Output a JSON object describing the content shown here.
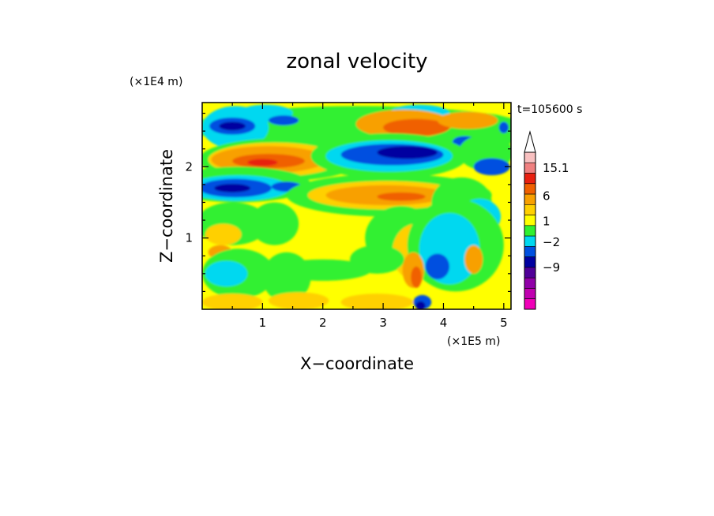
{
  "chart_data": {
    "type": "heatmap",
    "title": "zonal velocity",
    "xlabel": "X−coordinate",
    "ylabel": "Z−coordinate",
    "x_unit": "(×1E5 m)",
    "y_unit": "(×1E4 m)",
    "time_label": "t=105600 s",
    "x_ticks": [
      "1",
      "2",
      "3",
      "4",
      "5"
    ],
    "y_ticks": [
      "1",
      "2"
    ],
    "xlim": [
      0,
      5.12
    ],
    "ylim": [
      0,
      2.9
    ],
    "colorbar": {
      "labels": [
        "15.1",
        "6",
        "1",
        "−2",
        "−9"
      ],
      "colors": [
        "#f8c0c0",
        "#f08080",
        "#e82010",
        "#f06000",
        "#f8a000",
        "#ffd000",
        "#ffff00",
        "#30f030",
        "#00d8f0",
        "#0050e0",
        "#0000a0",
        "#500098",
        "#9000a8",
        "#c000b0",
        "#f000b8"
      ]
    },
    "features": [
      {
        "kind": "background",
        "color": "#ffff00"
      },
      {
        "kind": "blob",
        "x": 2.6,
        "z": 2.55,
        "rx": 2.8,
        "rz": 0.3,
        "color": "#30f030"
      },
      {
        "kind": "blob",
        "x": 4.6,
        "z": 2.5,
        "rx": 0.7,
        "rz": 0.25,
        "color": "#30f030"
      },
      {
        "kind": "blob",
        "x": 0.55,
        "z": 2.55,
        "rx": 0.55,
        "rz": 0.3,
        "color": "#00d8f0"
      },
      {
        "kind": "blob",
        "x": 1.05,
        "z": 2.75,
        "rx": 0.45,
        "rz": 0.12,
        "color": "#00d8f0"
      },
      {
        "kind": "blob",
        "x": 3.6,
        "z": 2.75,
        "rx": 0.5,
        "rz": 0.12,
        "color": "#00d8f0"
      },
      {
        "kind": "blob",
        "x": 0.5,
        "z": 2.57,
        "rx": 0.38,
        "rz": 0.12,
        "color": "#0050e0"
      },
      {
        "kind": "blob",
        "x": 0.5,
        "z": 2.57,
        "rx": 0.22,
        "rz": 0.06,
        "color": "#0000a0"
      },
      {
        "kind": "blob",
        "x": 1.35,
        "z": 2.65,
        "rx": 0.25,
        "rz": 0.07,
        "color": "#0050e0"
      },
      {
        "kind": "blob",
        "x": 3.35,
        "z": 2.6,
        "rx": 0.8,
        "rz": 0.2,
        "color": "#f8a000"
      },
      {
        "kind": "blob",
        "x": 3.55,
        "z": 2.55,
        "rx": 0.55,
        "rz": 0.12,
        "color": "#f06000"
      },
      {
        "kind": "blob",
        "x": 4.4,
        "z": 2.65,
        "rx": 0.5,
        "rz": 0.12,
        "color": "#f8a000"
      },
      {
        "kind": "blob",
        "x": 4.35,
        "z": 2.35,
        "rx": 0.2,
        "rz": 0.08,
        "color": "#0050e0"
      },
      {
        "kind": "blob",
        "x": 5.0,
        "z": 2.55,
        "rx": 0.08,
        "rz": 0.08,
        "color": "#0050e0"
      },
      {
        "kind": "blob",
        "x": 1.3,
        "z": 2.1,
        "rx": 1.35,
        "rz": 0.3,
        "color": "#30f030"
      },
      {
        "kind": "blob",
        "x": 1.2,
        "z": 2.1,
        "rx": 1.1,
        "rz": 0.24,
        "color": "#ffd000"
      },
      {
        "kind": "blob",
        "x": 1.1,
        "z": 2.1,
        "rx": 0.95,
        "rz": 0.19,
        "color": "#f8a000"
      },
      {
        "kind": "blob",
        "x": 1.1,
        "z": 2.08,
        "rx": 0.6,
        "rz": 0.1,
        "color": "#f06000"
      },
      {
        "kind": "blob",
        "x": 1.0,
        "z": 2.06,
        "rx": 0.25,
        "rz": 0.05,
        "color": "#e82010"
      },
      {
        "kind": "blob",
        "x": 3.1,
        "z": 2.15,
        "rx": 1.3,
        "rz": 0.32,
        "color": "#30f030"
      },
      {
        "kind": "blob",
        "x": 3.1,
        "z": 2.15,
        "rx": 1.05,
        "rz": 0.22,
        "color": "#00d8f0"
      },
      {
        "kind": "blob",
        "x": 3.15,
        "z": 2.17,
        "rx": 0.85,
        "rz": 0.15,
        "color": "#0050e0"
      },
      {
        "kind": "blob",
        "x": 3.4,
        "z": 2.2,
        "rx": 0.5,
        "rz": 0.09,
        "color": "#0000a0"
      },
      {
        "kind": "blob",
        "x": 4.7,
        "z": 2.2,
        "rx": 0.45,
        "rz": 0.25,
        "color": "#30f030"
      },
      {
        "kind": "blob",
        "x": 4.8,
        "z": 2.0,
        "rx": 0.3,
        "rz": 0.12,
        "color": "#0050e0"
      },
      {
        "kind": "blob",
        "x": 0.6,
        "z": 1.75,
        "rx": 1.2,
        "rz": 0.25,
        "color": "#30f030"
      },
      {
        "kind": "blob",
        "x": 0.6,
        "z": 1.7,
        "rx": 0.85,
        "rz": 0.18,
        "color": "#00d8f0"
      },
      {
        "kind": "blob",
        "x": 0.55,
        "z": 1.7,
        "rx": 0.6,
        "rz": 0.13,
        "color": "#0050e0"
      },
      {
        "kind": "blob",
        "x": 0.5,
        "z": 1.7,
        "rx": 0.3,
        "rz": 0.06,
        "color": "#0000a0"
      },
      {
        "kind": "blob",
        "x": 1.4,
        "z": 1.72,
        "rx": 0.25,
        "rz": 0.07,
        "color": "#0050e0"
      },
      {
        "kind": "blob",
        "x": 3.1,
        "z": 1.6,
        "rx": 1.7,
        "rz": 0.3,
        "color": "#30f030"
      },
      {
        "kind": "blob",
        "x": 3.05,
        "z": 1.6,
        "rx": 1.3,
        "rz": 0.2,
        "color": "#ffd000"
      },
      {
        "kind": "blob",
        "x": 3.05,
        "z": 1.6,
        "rx": 1.0,
        "rz": 0.14,
        "color": "#f8a000"
      },
      {
        "kind": "blob",
        "x": 3.3,
        "z": 1.58,
        "rx": 0.4,
        "rz": 0.06,
        "color": "#f06000"
      },
      {
        "kind": "blob",
        "x": 4.3,
        "z": 1.5,
        "rx": 0.5,
        "rz": 0.35,
        "color": "#30f030"
      },
      {
        "kind": "blob",
        "x": 4.6,
        "z": 1.3,
        "rx": 0.35,
        "rz": 0.25,
        "color": "#00d8f0"
      },
      {
        "kind": "blob",
        "x": 0.5,
        "z": 1.2,
        "rx": 0.6,
        "rz": 0.3,
        "color": "#30f030"
      },
      {
        "kind": "blob",
        "x": 0.35,
        "z": 1.05,
        "rx": 0.3,
        "rz": 0.15,
        "color": "#ffd000"
      },
      {
        "kind": "blob",
        "x": 0.3,
        "z": 0.8,
        "rx": 0.2,
        "rz": 0.1,
        "color": "#f8a000"
      },
      {
        "kind": "blob",
        "x": 1.2,
        "z": 1.2,
        "rx": 0.4,
        "rz": 0.3,
        "color": "#30f030"
      },
      {
        "kind": "blob",
        "x": 3.3,
        "z": 1.0,
        "rx": 0.6,
        "rz": 0.45,
        "color": "#30f030"
      },
      {
        "kind": "blob",
        "x": 3.55,
        "z": 0.8,
        "rx": 0.4,
        "rz": 0.4,
        "color": "#ffd000"
      },
      {
        "kind": "blob",
        "x": 4.2,
        "z": 0.9,
        "rx": 0.8,
        "rz": 0.65,
        "color": "#30f030"
      },
      {
        "kind": "blob",
        "x": 4.1,
        "z": 0.85,
        "rx": 0.5,
        "rz": 0.5,
        "color": "#00d8f0"
      },
      {
        "kind": "blob",
        "x": 3.9,
        "z": 0.6,
        "rx": 0.2,
        "rz": 0.18,
        "color": "#0050e0"
      },
      {
        "kind": "blob",
        "x": 4.5,
        "z": 0.7,
        "rx": 0.15,
        "rz": 0.2,
        "color": "#f8a000"
      },
      {
        "kind": "blob",
        "x": 0.6,
        "z": 0.5,
        "rx": 0.6,
        "rz": 0.35,
        "color": "#30f030"
      },
      {
        "kind": "blob",
        "x": 0.4,
        "z": 0.5,
        "rx": 0.35,
        "rz": 0.18,
        "color": "#00d8f0"
      },
      {
        "kind": "blob",
        "x": 1.4,
        "z": 0.45,
        "rx": 0.4,
        "rz": 0.35,
        "color": "#30f030"
      },
      {
        "kind": "blob",
        "x": 2.0,
        "z": 0.55,
        "rx": 0.8,
        "rz": 0.15,
        "color": "#30f030"
      },
      {
        "kind": "blob",
        "x": 2.9,
        "z": 0.7,
        "rx": 0.45,
        "rz": 0.2,
        "color": "#30f030"
      },
      {
        "kind": "blob",
        "x": 0.5,
        "z": 0.1,
        "rx": 0.5,
        "rz": 0.12,
        "color": "#ffd000"
      },
      {
        "kind": "blob",
        "x": 1.6,
        "z": 0.12,
        "rx": 0.5,
        "rz": 0.12,
        "color": "#ffd000"
      },
      {
        "kind": "blob",
        "x": 2.9,
        "z": 0.1,
        "rx": 0.6,
        "rz": 0.12,
        "color": "#ffd000"
      },
      {
        "kind": "blob",
        "x": 3.5,
        "z": 0.55,
        "rx": 0.18,
        "rz": 0.25,
        "color": "#f8a000"
      },
      {
        "kind": "blob",
        "x": 3.55,
        "z": 0.45,
        "rx": 0.09,
        "rz": 0.15,
        "color": "#f06000"
      },
      {
        "kind": "blob",
        "x": 3.65,
        "z": 0.1,
        "rx": 0.15,
        "rz": 0.1,
        "color": "#0050e0"
      },
      {
        "kind": "blob",
        "x": 3.62,
        "z": 0.05,
        "rx": 0.08,
        "rz": 0.06,
        "color": "#0000a0"
      }
    ]
  }
}
